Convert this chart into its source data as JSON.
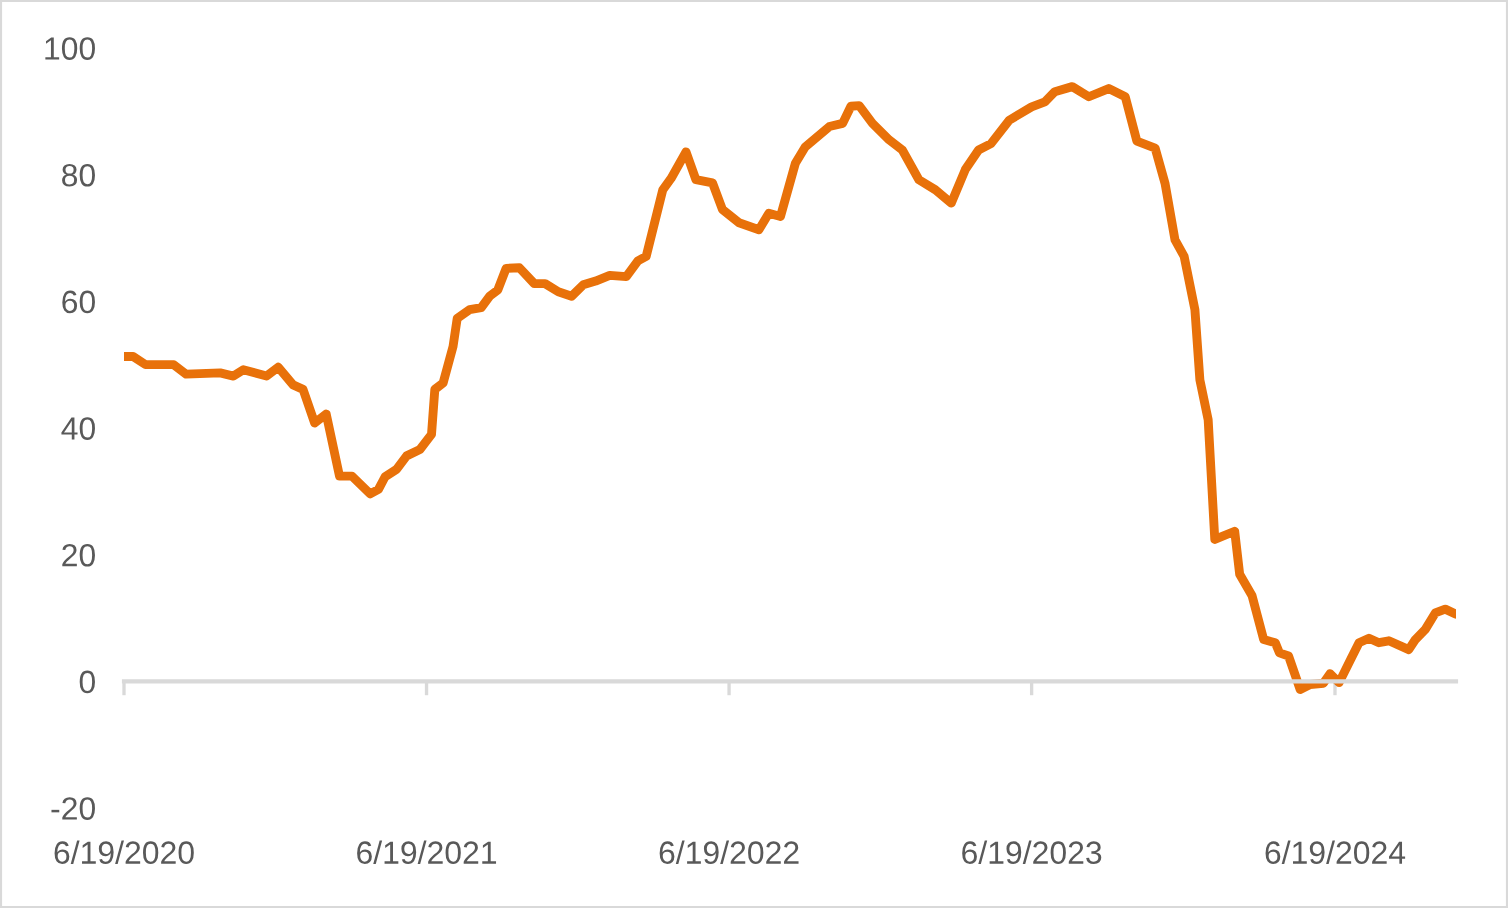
{
  "chart_data": {
    "type": "line",
    "x": [
      "2020-06-19",
      "2020-06-30",
      "2020-07-15",
      "2020-08-18",
      "2020-09-02",
      "2020-10-13",
      "2020-10-29",
      "2020-11-10",
      "2020-12-08",
      "2020-12-22",
      "2021-01-09",
      "2021-01-21",
      "2021-02-04",
      "2021-02-18",
      "2021-03-06",
      "2021-03-21",
      "2021-04-12",
      "2021-04-22",
      "2021-04-30",
      "2021-05-14",
      "2021-05-26",
      "2021-06-11",
      "2021-06-25",
      "2021-06-29",
      "2021-07-09",
      "2021-07-21",
      "2021-07-26",
      "2021-08-10",
      "2021-08-24",
      "2021-09-03",
      "2021-09-13",
      "2021-09-23",
      "2021-10-09",
      "2021-10-27",
      "2021-11-09",
      "2021-11-25",
      "2021-12-11",
      "2021-12-25",
      "2022-01-09",
      "2022-01-26",
      "2022-02-15",
      "2022-03-01",
      "2022-03-11",
      "2022-03-31",
      "2022-04-10",
      "2022-04-28",
      "2022-05-10",
      "2022-05-30",
      "2022-06-11",
      "2022-07-01",
      "2022-07-25",
      "2022-08-06",
      "2022-08-20",
      "2022-09-07",
      "2022-09-19",
      "2022-10-18",
      "2022-11-03",
      "2022-11-13",
      "2022-11-23",
      "2022-12-09",
      "2022-12-29",
      "2023-01-14",
      "2023-02-03",
      "2023-02-23",
      "2023-03-14",
      "2023-03-31",
      "2023-04-16",
      "2023-05-01",
      "2023-05-23",
      "2023-06-19",
      "2023-07-05",
      "2023-07-17",
      "2023-08-07",
      "2023-08-27",
      "2023-09-20",
      "2023-10-10",
      "2023-10-24",
      "2023-11-15",
      "2023-11-27",
      "2023-12-09",
      "2023-12-20",
      "2024-01-02",
      "2024-01-08",
      "2024-01-18",
      "2024-01-26",
      "2024-02-19",
      "2024-02-25",
      "2024-03-11",
      "2024-03-25",
      "2024-04-08",
      "2024-04-13",
      "2024-04-24",
      "2024-05-08",
      "2024-05-20",
      "2024-06-05",
      "2024-06-13",
      "2024-06-24",
      "2024-07-08",
      "2024-07-18",
      "2024-07-30",
      "2024-08-11",
      "2024-08-23",
      "2024-09-16",
      "2024-09-24",
      "2024-10-06",
      "2024-10-18",
      "2024-10-30",
      "2024-11-12"
    ],
    "series": [
      {
        "color": "#e8710a",
        "values": [
          51.3,
          51.3,
          50.0,
          50.0,
          48.5,
          48.7,
          48.2,
          49.2,
          48.2,
          49.6,
          46.8,
          46.1,
          40.8,
          42.2,
          32.4,
          32.4,
          29.6,
          30.3,
          32.3,
          33.5,
          35.6,
          36.6,
          39.0,
          46.1,
          47.1,
          52.9,
          57.3,
          58.7,
          59.0,
          60.8,
          61.8,
          65.2,
          65.3,
          62.8,
          62.8,
          61.5,
          60.8,
          62.6,
          63.2,
          64.1,
          63.9,
          66.4,
          67.1,
          77.6,
          79.4,
          83.6,
          79.2,
          78.7,
          74.5,
          72.4,
          71.3,
          73.9,
          73.4,
          81.8,
          84.4,
          87.6,
          88.1,
          90.8,
          90.9,
          88.1,
          85.5,
          83.9,
          79.2,
          77.6,
          75.5,
          80.8,
          83.9,
          84.9,
          88.6,
          90.7,
          91.5,
          93.1,
          93.9,
          92.3,
          93.6,
          92.3,
          85.3,
          84.2,
          78.6,
          69.7,
          67.1,
          58.7,
          47.6,
          41.3,
          22.4,
          23.7,
          16.9,
          13.5,
          6.6,
          6.1,
          4.5,
          4.0,
          -1.3,
          -0.5,
          -0.3,
          1.2,
          -0.2,
          3.5,
          6.1,
          6.8,
          6.1,
          6.4,
          5.0,
          6.6,
          8.2,
          10.8,
          11.4,
          10.6
        ]
      }
    ],
    "xlim": [
      "2020-06-19",
      "2024-11-12"
    ],
    "xticks": [
      {
        "value": "2020-06-19",
        "label": "6/19/2020"
      },
      {
        "value": "2021-06-19",
        "label": "6/19/2021"
      },
      {
        "value": "2022-06-19",
        "label": "6/19/2022"
      },
      {
        "value": "2023-06-19",
        "label": "6/19/2023"
      },
      {
        "value": "2024-06-19",
        "label": "6/19/2024"
      }
    ],
    "ylim": [
      -20,
      100
    ],
    "yticks": [
      -20,
      0,
      20,
      40,
      60,
      80,
      100
    ],
    "legend": false,
    "marker": "none",
    "line_style": "solid"
  }
}
